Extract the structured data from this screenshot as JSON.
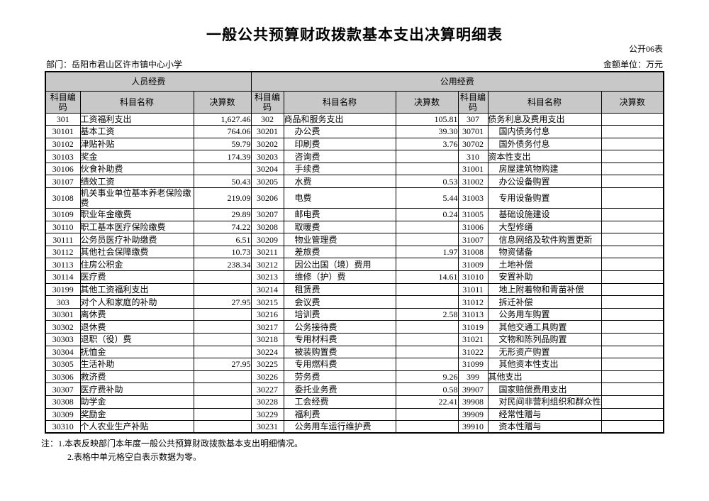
{
  "page": {
    "title": "一般公共预算财政拨款基本支出决算明细表",
    "form_code": "公开06表",
    "department_label": "部门：岳阳市君山区许市镇中心小学",
    "unit_label": "金额单位：万元",
    "notes": [
      "注：1.本表反映部门本年度一般公共预算财政拨款基本支出明细情况。",
      "2.表格中单元格空白表示数据为零。"
    ]
  },
  "colors": {
    "header_bg": "#c8c8c8",
    "border": "#000000"
  },
  "table": {
    "group_headers": [
      "人员经费",
      "公用经费"
    ],
    "column_headers": [
      "科目编码",
      "科目名称",
      "决算数"
    ],
    "rows": [
      [
        [
          "301",
          "工资福利支出",
          "1,627.46"
        ],
        [
          "302",
          "商品和服务支出",
          "105.81"
        ],
        [
          "307",
          "债务利息及费用支出",
          ""
        ]
      ],
      [
        [
          "30101",
          "基本工资",
          "764.06"
        ],
        [
          "30201",
          "办公费",
          "39.30"
        ],
        [
          "30701",
          "国内债务付息",
          ""
        ]
      ],
      [
        [
          "30102",
          "津贴补贴",
          "59.79"
        ],
        [
          "30202",
          "印刷费",
          "3.76"
        ],
        [
          "30702",
          "国外债务付息",
          ""
        ]
      ],
      [
        [
          "30103",
          "奖金",
          "174.39"
        ],
        [
          "30203",
          "咨询费",
          ""
        ],
        [
          "310",
          "资本性支出",
          ""
        ]
      ],
      [
        [
          "30106",
          "伙食补助费",
          ""
        ],
        [
          "30204",
          "手续费",
          ""
        ],
        [
          "31001",
          "房屋建筑物购建",
          ""
        ]
      ],
      [
        [
          "30107",
          "绩效工资",
          "50.43"
        ],
        [
          "30205",
          "水费",
          "0.53"
        ],
        [
          "31002",
          "办公设备购置",
          ""
        ]
      ],
      [
        [
          "30108",
          "机关事业单位基本养老保险缴费",
          "219.09"
        ],
        [
          "30206",
          "电费",
          "5.44"
        ],
        [
          "31003",
          "专用设备购置",
          ""
        ]
      ],
      [
        [
          "30109",
          "职业年金缴费",
          "29.89"
        ],
        [
          "30207",
          "邮电费",
          "0.24"
        ],
        [
          "31005",
          "基础设施建设",
          ""
        ]
      ],
      [
        [
          "30110",
          "职工基本医疗保险缴费",
          "74.22"
        ],
        [
          "30208",
          "取暖费",
          ""
        ],
        [
          "31006",
          "大型修缮",
          ""
        ]
      ],
      [
        [
          "30111",
          "公务员医疗补助缴费",
          "6.51"
        ],
        [
          "30209",
          "物业管理费",
          ""
        ],
        [
          "31007",
          "信息网络及软件购置更新",
          ""
        ]
      ],
      [
        [
          "30112",
          "其他社会保障缴费",
          "10.73"
        ],
        [
          "30211",
          "差旅费",
          "1.97"
        ],
        [
          "31008",
          "物资储备",
          ""
        ]
      ],
      [
        [
          "30113",
          "住房公积金",
          "238.34"
        ],
        [
          "30212",
          "因公出国（境）费用",
          ""
        ],
        [
          "31009",
          "土地补偿",
          ""
        ]
      ],
      [
        [
          "30114",
          "医疗费",
          ""
        ],
        [
          "30213",
          "维修（护）费",
          "14.61"
        ],
        [
          "31010",
          "安置补助",
          ""
        ]
      ],
      [
        [
          "30199",
          "其他工资福利支出",
          ""
        ],
        [
          "30214",
          "租赁费",
          ""
        ],
        [
          "31011",
          "地上附着物和青苗补偿",
          ""
        ]
      ],
      [
        [
          "303",
          "对个人和家庭的补助",
          "27.95"
        ],
        [
          "30215",
          "会议费",
          ""
        ],
        [
          "31012",
          "拆迁补偿",
          ""
        ]
      ],
      [
        [
          "30301",
          "离休费",
          ""
        ],
        [
          "30216",
          "培训费",
          "2.58"
        ],
        [
          "31013",
          "公务用车购置",
          ""
        ]
      ],
      [
        [
          "30302",
          "退休费",
          ""
        ],
        [
          "30217",
          "公务接待费",
          ""
        ],
        [
          "31019",
          "其他交通工具购置",
          ""
        ]
      ],
      [
        [
          "30303",
          "退职（役）费",
          ""
        ],
        [
          "30218",
          "专用材料费",
          ""
        ],
        [
          "31021",
          "文物和陈列品购置",
          ""
        ]
      ],
      [
        [
          "30304",
          "抚恤金",
          ""
        ],
        [
          "30224",
          "被装购置费",
          ""
        ],
        [
          "31022",
          "无形资产购置",
          ""
        ]
      ],
      [
        [
          "30305",
          "生活补助",
          "27.95"
        ],
        [
          "30225",
          "专用燃料费",
          ""
        ],
        [
          "31099",
          "其他资本性支出",
          ""
        ]
      ],
      [
        [
          "30306",
          "救济费",
          ""
        ],
        [
          "30226",
          "劳务费",
          "9.26"
        ],
        [
          "399",
          "其他支出",
          ""
        ]
      ],
      [
        [
          "30307",
          "医疗费补助",
          ""
        ],
        [
          "30227",
          "委托业务费",
          "0.58"
        ],
        [
          "39907",
          "国家赔偿费用支出",
          ""
        ]
      ],
      [
        [
          "30308",
          "助学金",
          ""
        ],
        [
          "30228",
          "工会经费",
          "22.41"
        ],
        [
          "39908",
          "对民间非营利组织和群众性自",
          ""
        ]
      ],
      [
        [
          "30309",
          "奖励金",
          ""
        ],
        [
          "30229",
          "福利费",
          ""
        ],
        [
          "39909",
          "经常性赠与",
          ""
        ]
      ],
      [
        [
          "30310",
          "个人农业生产补贴",
          ""
        ],
        [
          "30231",
          "公务用车运行维护费",
          ""
        ],
        [
          "39910",
          "资本性赠与",
          ""
        ]
      ]
    ]
  }
}
